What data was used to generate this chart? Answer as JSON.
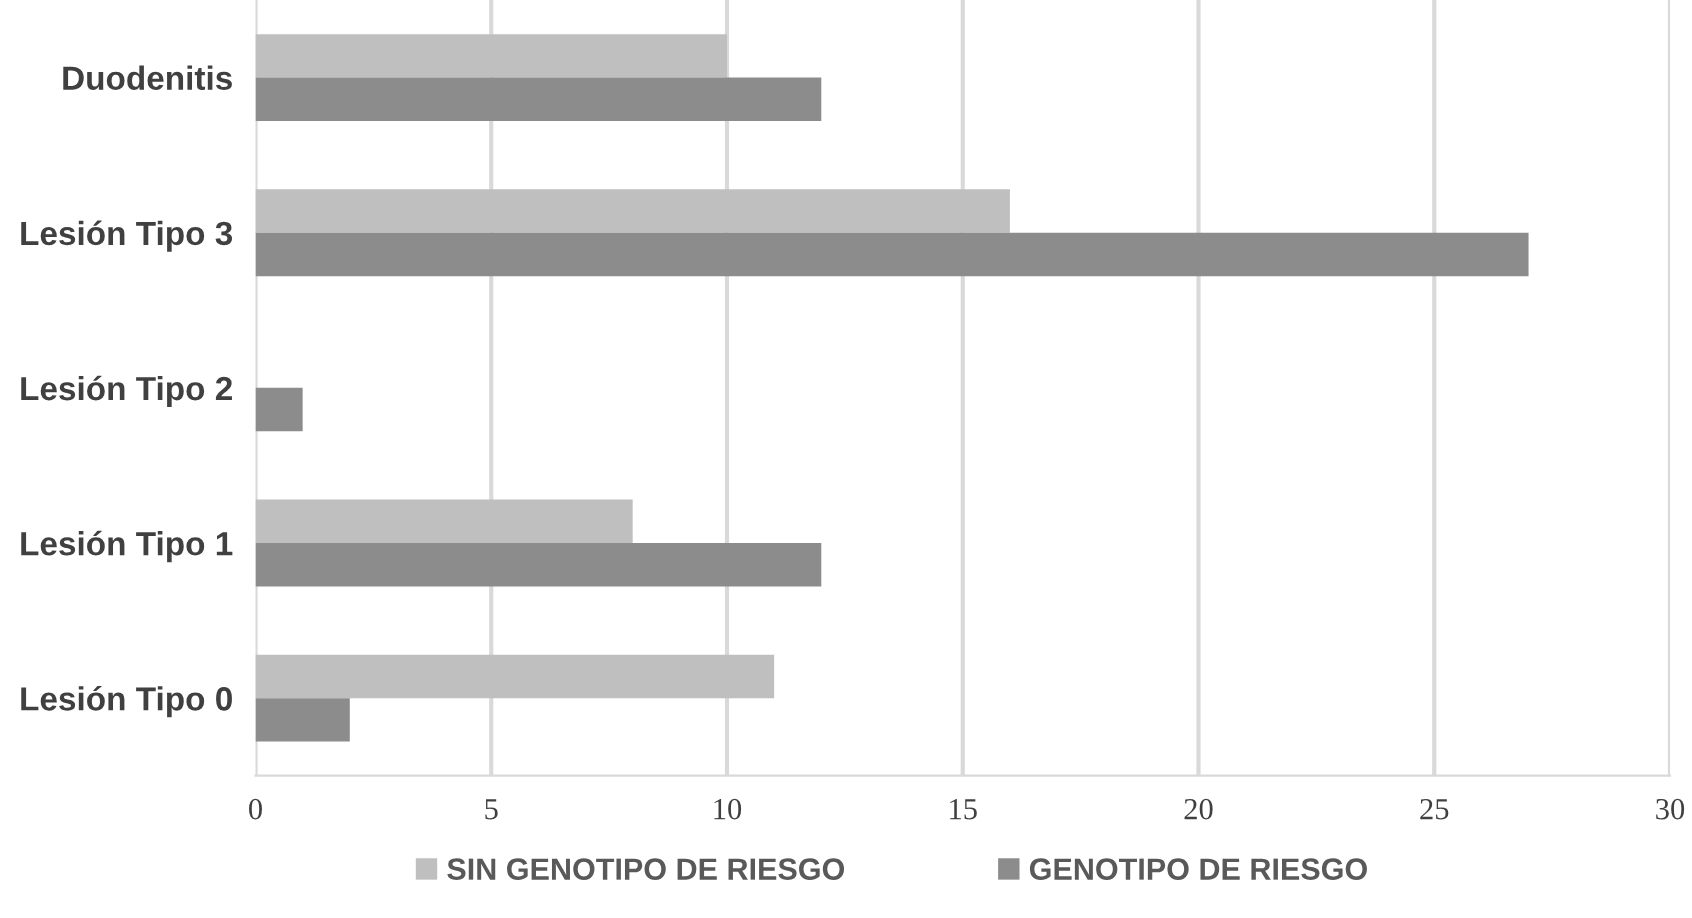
{
  "chart_data": {
    "type": "bar",
    "orientation": "horizontal",
    "categories": [
      "Duodenitis",
      "Lesión Tipo 3",
      "Lesión Tipo 2",
      "Lesión Tipo 1",
      "Lesión Tipo 0"
    ],
    "series": [
      {
        "name": "SIN GENOTIPO DE RIESGO",
        "color": "#bfbfbf",
        "values": [
          10,
          16,
          0,
          8,
          11
        ]
      },
      {
        "name": "GENOTIPO DE RIESGO",
        "color": "#8c8c8c",
        "values": [
          12,
          27,
          1,
          12,
          2
        ]
      }
    ],
    "xlim": [
      0,
      30
    ],
    "xticks": [
      0,
      5,
      10,
      15,
      20,
      25,
      30
    ],
    "grid": "x",
    "legend": "bottom"
  }
}
